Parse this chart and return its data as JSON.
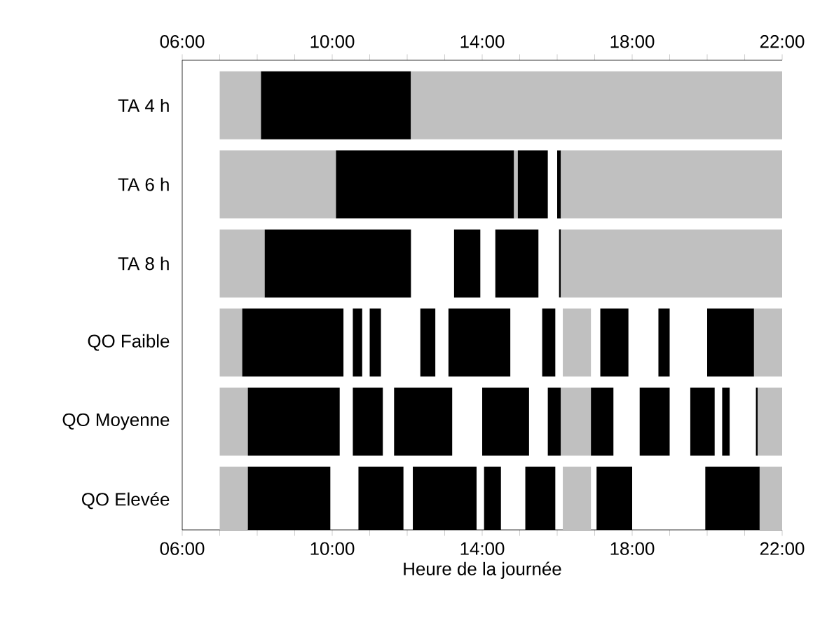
{
  "chart_data": {
    "type": "bar",
    "orientation": "horizontal",
    "categories": [
      "TA 4 h",
      "TA 6 h",
      "TA 8 h",
      "QO Faible",
      "QO Moyenne",
      "QO Elevée"
    ],
    "xlabel": "Heure de la journée",
    "xlim": [
      6,
      22
    ],
    "xticks": [
      {
        "value": 6,
        "label": "06:00"
      },
      {
        "value": 7,
        "label": null
      },
      {
        "value": 8,
        "label": null
      },
      {
        "value": 9,
        "label": null
      },
      {
        "value": 10,
        "label": "10:00"
      },
      {
        "value": 11,
        "label": null
      },
      {
        "value": 12,
        "label": null
      },
      {
        "value": 13,
        "label": null
      },
      {
        "value": 14,
        "label": "14:00"
      },
      {
        "value": 15,
        "label": null
      },
      {
        "value": 16,
        "label": null
      },
      {
        "value": 17,
        "label": null
      },
      {
        "value": 18,
        "label": "18:00"
      },
      {
        "value": 19,
        "label": null
      },
      {
        "value": 20,
        "label": null
      },
      {
        "value": 21,
        "label": null
      },
      {
        "value": 22,
        "label": "22:00"
      }
    ],
    "x2lim": [
      6,
      22
    ],
    "x2ticks": [
      {
        "value": 6,
        "label": "06:00"
      },
      {
        "value": 7,
        "label": null
      },
      {
        "value": 8,
        "label": null
      },
      {
        "value": 9,
        "label": null
      },
      {
        "value": 10,
        "label": "10:00"
      },
      {
        "value": 11,
        "label": null
      },
      {
        "value": 12,
        "label": null
      },
      {
        "value": 13,
        "label": null
      },
      {
        "value": 14,
        "label": "14:00"
      },
      {
        "value": 15,
        "label": null
      },
      {
        "value": 16,
        "label": null
      },
      {
        "value": 17,
        "label": null
      },
      {
        "value": 18,
        "label": "18:00"
      },
      {
        "value": 19,
        "label": null
      },
      {
        "value": 20,
        "label": null
      },
      {
        "value": 21,
        "label": null
      },
      {
        "value": 22,
        "label": "22:00"
      }
    ],
    "series": [
      {
        "base": [
          7,
          7,
          7,
          7,
          7,
          7
        ],
        "values": [
          1.1,
          3.1,
          1.2,
          0.6,
          0.75,
          0.75
        ],
        "colors": [
          "#c0c0c0",
          "#c0c0c0",
          "#c0c0c0",
          "#c0c0c0",
          "#c0c0c0",
          "#c0c0c0"
        ]
      },
      {
        "base": [
          8.1,
          10.1,
          8.2,
          7.6,
          7.75,
          7.75
        ],
        "values": [
          4.0,
          4.75,
          3.9,
          2.7,
          2.45,
          2.2
        ],
        "colors": [
          "#000000",
          "#000000",
          "#000000",
          "#000000",
          "#000000",
          "#000000"
        ]
      },
      {
        "base": [
          12.1,
          14.85,
          13.25,
          10.55,
          10.55,
          10.7
        ],
        "values": [
          9.9,
          0.1,
          0.7,
          0.25,
          0.8,
          1.2
        ],
        "colors": [
          "#c0c0c0",
          "#c0c0c0",
          "#000000",
          "#000000",
          "#000000",
          "#000000"
        ]
      },
      {
        "base": [
          null,
          14.95,
          14.35,
          11.0,
          11.65,
          12.15
        ],
        "values": [
          null,
          0.8,
          1.15,
          0.3,
          1.55,
          1.7
        ],
        "colors": [
          null,
          "#000000",
          "#000000",
          "#000000",
          "#000000",
          "#000000"
        ]
      },
      {
        "base": [
          null,
          16.0,
          16.05,
          12.35,
          14.0,
          14.05
        ],
        "values": [
          null,
          0.1,
          0.05,
          0.4,
          1.25,
          0.45
        ],
        "colors": [
          null,
          "#000000",
          "#000000",
          "#000000",
          "#000000",
          "#000000"
        ]
      },
      {
        "base": [
          null,
          16.1,
          16.1,
          13.1,
          15.75,
          15.15
        ],
        "values": [
          null,
          5.9,
          5.9,
          1.65,
          0.35,
          0.8
        ],
        "colors": [
          null,
          "#c0c0c0",
          "#c0c0c0",
          "#000000",
          "#000000",
          "#000000"
        ]
      },
      {
        "base": [
          null,
          null,
          null,
          15.6,
          16.1,
          16.15
        ],
        "values": [
          null,
          null,
          null,
          0.35,
          0.8,
          0.75
        ],
        "colors": [
          null,
          null,
          null,
          "#000000",
          "#c0c0c0",
          "#c0c0c0"
        ]
      },
      {
        "base": [
          null,
          null,
          null,
          16.15,
          16.9,
          17.05
        ],
        "values": [
          null,
          null,
          null,
          0.75,
          0.6,
          0.95
        ],
        "colors": [
          null,
          null,
          null,
          "#c0c0c0",
          "#000000",
          "#000000"
        ]
      },
      {
        "base": [
          null,
          null,
          null,
          17.15,
          18.2,
          19.95
        ],
        "values": [
          null,
          null,
          null,
          0.75,
          0.8,
          1.45
        ],
        "colors": [
          null,
          null,
          null,
          "#000000",
          "#000000",
          "#000000"
        ]
      },
      {
        "base": [
          null,
          null,
          null,
          18.7,
          19.55,
          21.4
        ],
        "values": [
          null,
          null,
          null,
          0.3,
          0.65,
          0.6
        ],
        "colors": [
          null,
          null,
          null,
          "#000000",
          "#000000",
          "#c0c0c0"
        ]
      },
      {
        "base": [
          null,
          null,
          null,
          20.0,
          20.4,
          null
        ],
        "values": [
          null,
          null,
          null,
          1.25,
          0.2,
          null
        ],
        "colors": [
          null,
          null,
          null,
          "#000000",
          "#000000",
          null
        ]
      },
      {
        "base": [
          null,
          null,
          null,
          21.25,
          21.3,
          null
        ],
        "values": [
          null,
          null,
          null,
          0.75,
          0.05,
          null
        ],
        "colors": [
          null,
          null,
          null,
          "#c0c0c0",
          "#000000",
          null
        ]
      },
      {
        "base": [
          null,
          null,
          null,
          null,
          21.35,
          null
        ],
        "values": [
          null,
          null,
          null,
          null,
          0.65,
          null
        ],
        "colors": [
          null,
          null,
          null,
          null,
          "#c0c0c0",
          null
        ]
      }
    ]
  }
}
